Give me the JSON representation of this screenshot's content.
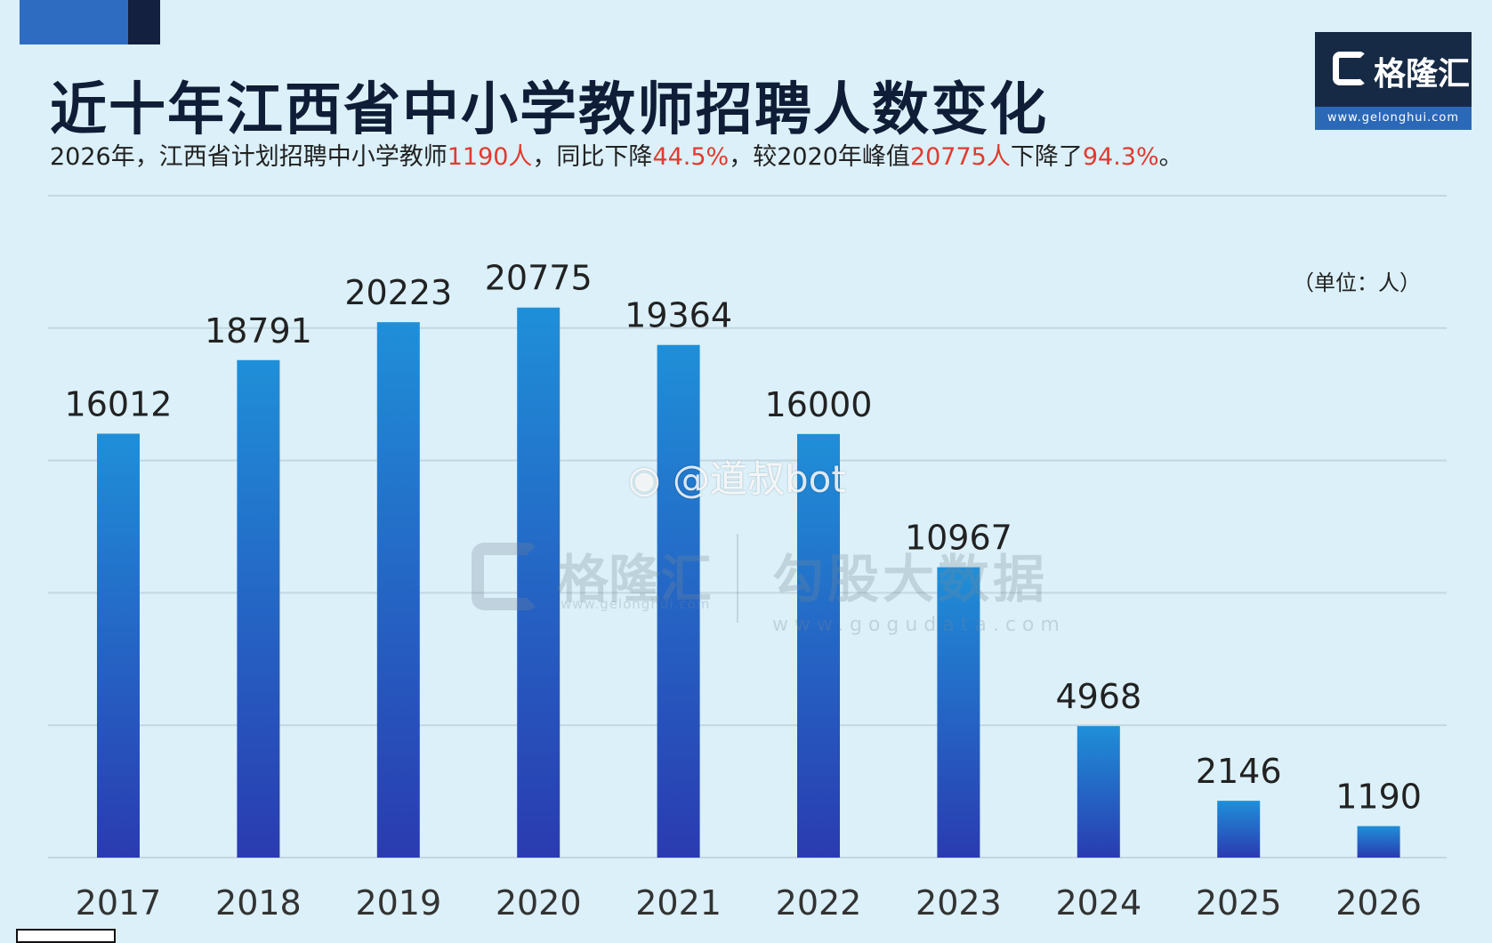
{
  "header": {
    "title": "近十年江西省中小学教师招聘人数变化",
    "subtitle": {
      "p1": "2026年，江西省计划招聘中小学教师",
      "h1": "1190人",
      "p2": "，同比下降",
      "h2": "44.5%",
      "p3": "，较2020年峰值",
      "h3": "20775人",
      "p4": "下降了",
      "h4": "94.3%",
      "p5": "。"
    }
  },
  "logo": {
    "name": "格隆汇",
    "url": "www.gelonghui.com"
  },
  "unit_label": "（单位：人）",
  "watermarks": {
    "weibo": "@道叔bot",
    "gelonghui_name": "格隆汇",
    "gelonghui_url": "www.gelonghui.com",
    "gogu_name": "勾股大数据",
    "gogu_url": "www.gogudata.com"
  },
  "colors": {
    "bar_top": "#1f8fd8",
    "bar_bottom": "#2a3bb0",
    "highlight": "#e23a2e",
    "background": "#dbf0f9"
  },
  "chart_data": {
    "type": "bar",
    "categories": [
      "2017",
      "2018",
      "2019",
      "2020",
      "2021",
      "2022",
      "2023",
      "2024",
      "2025",
      "2026"
    ],
    "values": [
      16012,
      18791,
      20223,
      20775,
      19364,
      16000,
      10967,
      4968,
      2146,
      1190
    ],
    "ylim": [
      0,
      25000
    ],
    "grid": true
  }
}
